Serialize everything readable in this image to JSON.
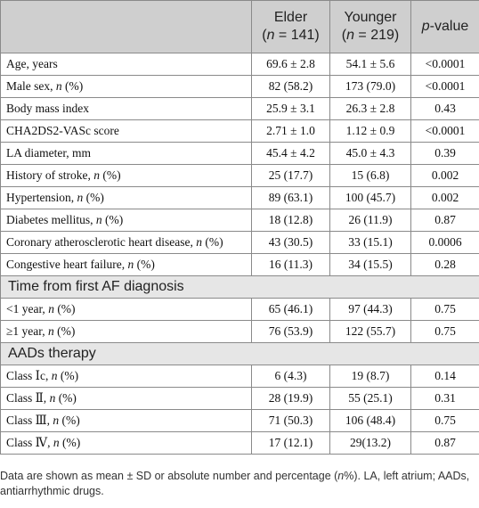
{
  "header": {
    "col2_line1": "Elder",
    "col2_n": "141",
    "col3_line1": "Younger",
    "col3_n": "219",
    "col4_p": "p",
    "col4_rest": "-value"
  },
  "rows_a": [
    {
      "label": "Age, years",
      "n_suffix": "",
      "elder": "69.6 ± 2.8",
      "younger": "54.1 ± 5.6",
      "p": "<0.0001"
    },
    {
      "label": "Male sex, ",
      "n_suffix": "n (%)",
      "elder": "82 (58.2)",
      "younger": "173 (79.0)",
      "p": "<0.0001"
    },
    {
      "label": "Body mass index",
      "n_suffix": "",
      "elder": "25.9 ± 3.1",
      "younger": "26.3 ± 2.8",
      "p": "0.43"
    },
    {
      "label": "CHA2DS2-VASc score",
      "n_suffix": "",
      "elder": "2.71 ± 1.0",
      "younger": "1.12 ± 0.9",
      "p": "<0.0001"
    },
    {
      "label": "LA diameter, mm",
      "n_suffix": "",
      "elder": "45.4 ± 4.2",
      "younger": "45.0 ± 4.3",
      "p": "0.39"
    },
    {
      "label": "History of stroke, ",
      "n_suffix": "n (%)",
      "elder": "25 (17.7)",
      "younger": "15 (6.8)",
      "p": "0.002"
    },
    {
      "label": "Hypertension, ",
      "n_suffix": "n (%)",
      "elder": "89 (63.1)",
      "younger": "100 (45.7)",
      "p": "0.002"
    },
    {
      "label": "Diabetes mellitus, ",
      "n_suffix": "n (%)",
      "elder": "18 (12.8)",
      "younger": "26 (11.9)",
      "p": "0.87"
    },
    {
      "label": "Coronary atherosclerotic heart disease, ",
      "n_suffix": "n (%)",
      "elder": "43 (30.5)",
      "younger": "33 (15.1)",
      "p": "0.0006"
    },
    {
      "label": "Congestive heart failure, ",
      "n_suffix": "n (%)",
      "elder": "16 (11.3)",
      "younger": "34 (15.5)",
      "p": "0.28"
    }
  ],
  "section_b": "Time from first AF diagnosis",
  "rows_b": [
    {
      "label": "<1 year, ",
      "n_suffix": "n (%)",
      "elder": "65 (46.1)",
      "younger": "97 (44.3)",
      "p": "0.75"
    },
    {
      "label": "≥1 year, ",
      "n_suffix": "n (%)",
      "elder": "76 (53.9)",
      "younger": "122 (55.7)",
      "p": "0.75"
    }
  ],
  "section_c": "AADs therapy",
  "rows_c": [
    {
      "label": "Class Ⅰc, ",
      "n_suffix": "n (%)",
      "elder": "6 (4.3)",
      "younger": "19 (8.7)",
      "p": "0.14"
    },
    {
      "label": "Class Ⅱ, ",
      "n_suffix": "n (%)",
      "elder": "28 (19.9)",
      "younger": "55 (25.1)",
      "p": "0.31"
    },
    {
      "label": "Class Ⅲ, ",
      "n_suffix": "n (%)",
      "elder": "71 (50.3)",
      "younger": "106 (48.4)",
      "p": "0.75"
    },
    {
      "label": "Class Ⅳ, ",
      "n_suffix": "n (%)",
      "elder": "17 (12.1)",
      "younger": "29(13.2)",
      "p": "0.87"
    }
  ],
  "footnote": {
    "line": "Data are shown as mean ± SD or absolute number and percentage (n%). LA, left atrium; AADs, antiarrhythmic drugs."
  }
}
